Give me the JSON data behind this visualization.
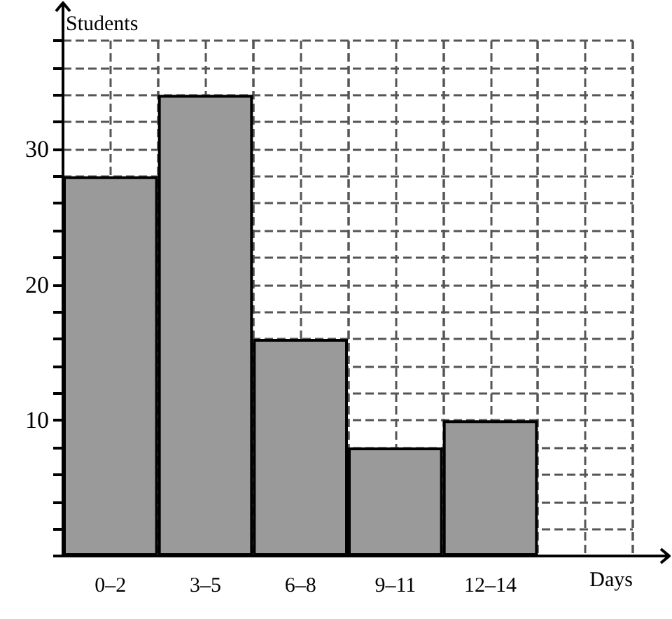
{
  "chart_data": {
    "type": "bar",
    "xlabel": "Days",
    "ylabel": "Students",
    "categories": [
      "0–2",
      "3–5",
      "6–8",
      "9–11",
      "12–14",
      null
    ],
    "values": [
      28,
      34,
      16,
      8,
      10,
      null
    ],
    "color": "#9a9a9a",
    "ylim": [
      0,
      38
    ],
    "yticks": [
      {
        "value": 0,
        "label": null
      },
      {
        "value": 2,
        "label": null
      },
      {
        "value": 4,
        "label": null
      },
      {
        "value": 6,
        "label": null
      },
      {
        "value": 8,
        "label": null
      },
      10,
      {
        "value": 12,
        "label": null
      },
      {
        "value": 14,
        "label": null
      },
      {
        "value": 16,
        "label": null
      },
      {
        "value": 18,
        "label": null
      },
      20,
      {
        "value": 22,
        "label": null
      },
      {
        "value": 24,
        "label": null
      },
      {
        "value": 26,
        "label": null
      },
      {
        "value": 28,
        "label": null
      },
      30,
      {
        "value": 32,
        "label": null
      },
      {
        "value": 34,
        "label": null
      },
      {
        "value": 36,
        "label": null
      },
      {
        "value": 38,
        "label": null
      }
    ],
    "grid": true,
    "line_style": "dashed"
  }
}
